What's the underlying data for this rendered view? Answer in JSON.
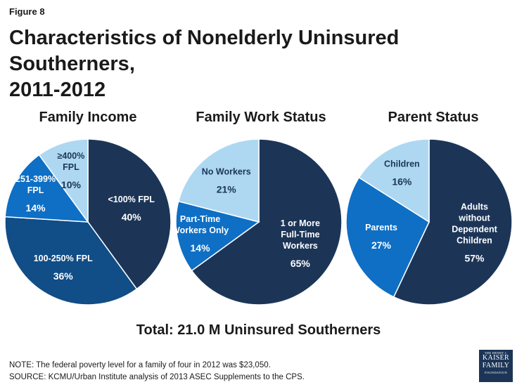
{
  "figure_label": "Figure 8",
  "title_line1": "Characteristics of Nonelderly Uninsured Southerners,",
  "title_line2": "2011-2012",
  "total": "Total: 21.0 M Uninsured Southerners",
  "note": "NOTE: The federal poverty level for a family of four in 2012 was $23,050.",
  "source": "SOURCE: KCMU/Urban Institute analysis of 2013 ASEC Supplements to the CPS.",
  "logo": {
    "line1": "THE HENRY J.",
    "line2": "KAISER",
    "line3": "FAMILY",
    "line4": "FOUNDATION"
  },
  "chart_data": [
    {
      "type": "pie",
      "title": "Family Income",
      "slices": [
        {
          "label": [
            "<100% FPL"
          ],
          "value": 40,
          "value_label": "40%",
          "color": "#1c3557",
          "text_color": "#ffffff"
        },
        {
          "label": [
            "100-250% FPL"
          ],
          "value": 36,
          "value_label": "36%",
          "color": "#114d86",
          "text_color": "#ffffff"
        },
        {
          "label": [
            "251-399%",
            "FPL"
          ],
          "value": 14,
          "value_label": "14%",
          "color": "#0e6fc5",
          "text_color": "#ffffff"
        },
        {
          "label": [
            "≥400%",
            "FPL"
          ],
          "value": 10,
          "value_label": "10%",
          "color": "#aed8f2",
          "text_color": "#1c3557"
        }
      ]
    },
    {
      "type": "pie",
      "title": "Family Work Status",
      "slices": [
        {
          "label": [
            "1 or More",
            "Full-Time",
            "Workers"
          ],
          "value": 65,
          "value_label": "65%",
          "color": "#1c3557",
          "text_color": "#ffffff"
        },
        {
          "label": [
            "Part-Time",
            "Workers Only"
          ],
          "value": 14,
          "value_label": "14%",
          "color": "#0e6fc5",
          "text_color": "#ffffff"
        },
        {
          "label": [
            "No Workers"
          ],
          "value": 21,
          "value_label": "21%",
          "color": "#aed8f2",
          "text_color": "#1c3557"
        }
      ]
    },
    {
      "type": "pie",
      "title": "Parent Status",
      "slices": [
        {
          "label": [
            "Adults",
            "without",
            "Dependent",
            "Children"
          ],
          "value": 57,
          "value_label": "57%",
          "color": "#1c3557",
          "text_color": "#ffffff"
        },
        {
          "label": [
            "Parents"
          ],
          "value": 27,
          "value_label": "27%",
          "color": "#0e6fc5",
          "text_color": "#ffffff"
        },
        {
          "label": [
            "Children"
          ],
          "value": 16,
          "value_label": "16%",
          "color": "#aed8f2",
          "text_color": "#1c3557"
        }
      ]
    }
  ]
}
